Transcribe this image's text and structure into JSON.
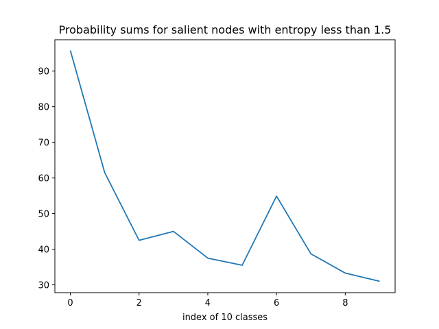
{
  "chart_data": {
    "type": "line",
    "title": "Probability sums for salient nodes with entropy less than 1.5",
    "xlabel": "index of 10 classes",
    "ylabel": "",
    "xlim": [
      -0.45,
      9.45
    ],
    "ylim": [
      27.8,
      98.8
    ],
    "xticks": [
      0,
      2,
      4,
      6,
      8
    ],
    "yticks": [
      30,
      40,
      50,
      60,
      70,
      80,
      90
    ],
    "grid": false,
    "line_color": "#1f77b4",
    "series": [
      {
        "x": [
          0,
          1,
          2,
          3,
          4,
          5,
          6,
          7,
          8,
          9
        ],
        "values": [
          95.8,
          61.5,
          42.5,
          45.0,
          37.5,
          35.5,
          54.9,
          38.7,
          33.3,
          31.0
        ]
      }
    ]
  }
}
